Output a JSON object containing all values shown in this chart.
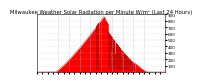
{
  "title": "Milwaukee Weather Solar Radiation per Minute W/m² (Last 24 Hours)",
  "bg_color": "#ffffff",
  "fill_color": "#ff0000",
  "line_color": "#cc0000",
  "grid_color": "#bbbbbb",
  "ylim": [
    0,
    900
  ],
  "yticks": [
    100,
    200,
    300,
    400,
    500,
    600,
    700,
    800,
    900
  ],
  "num_points": 1440,
  "title_fontsize": 3.8,
  "tick_fontsize": 3.0,
  "dashed_positions": [
    240,
    360,
    480,
    600,
    720,
    840,
    960,
    1080,
    1200
  ]
}
